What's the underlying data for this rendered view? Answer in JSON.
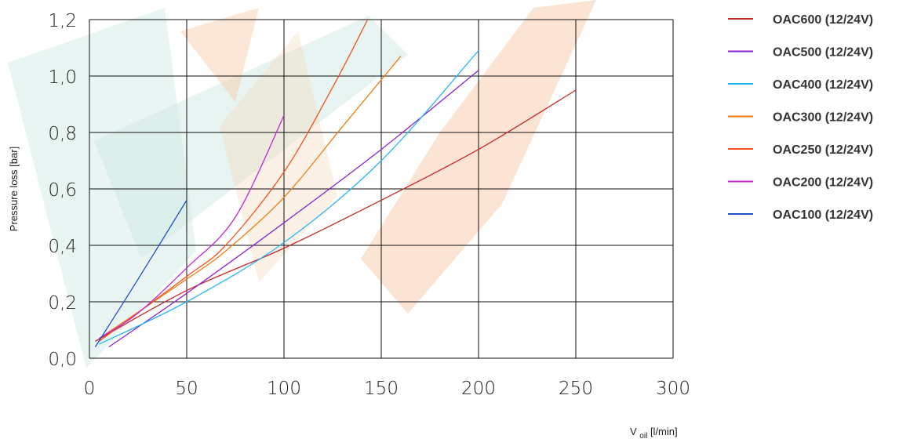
{
  "chart_data": {
    "type": "line",
    "title": "",
    "ylabel": "Pressure loss [bar]",
    "xlabel_main": "V",
    "xlabel_sub": "oil",
    "xlabel_unit": "[l/min]",
    "xlim": [
      0,
      300
    ],
    "ylim": [
      0,
      1.2
    ],
    "x_ticks": [
      0,
      50,
      100,
      150,
      200,
      250,
      300
    ],
    "x_tick_labels": [
      "0",
      "50",
      "100",
      "150",
      "200",
      "250",
      "300"
    ],
    "y_ticks": [
      0,
      0.2,
      0.4,
      0.6,
      0.8,
      1.0,
      1.2
    ],
    "y_tick_labels": [
      "0,0",
      "0,2",
      "0,4",
      "0,6",
      "0,8",
      "1,0",
      "1,2"
    ],
    "grid": true,
    "legend_position": "right",
    "series": [
      {
        "name": "OAC600 (12/24V)",
        "color": "#c62828",
        "x": [
          3,
          50,
          100,
          150,
          200,
          250
        ],
        "y": [
          0.06,
          0.24,
          0.39,
          0.56,
          0.74,
          0.95
        ]
      },
      {
        "name": "OAC500 (12/24V)",
        "color": "#8e24d0",
        "x": [
          10,
          50,
          100,
          150,
          200
        ],
        "y": [
          0.04,
          0.23,
          0.48,
          0.74,
          1.02
        ]
      },
      {
        "name": "OAC400 (12/24V)",
        "color": "#29b6f6",
        "x": [
          5,
          50,
          100,
          150,
          200
        ],
        "y": [
          0.05,
          0.2,
          0.41,
          0.7,
          1.09
        ]
      },
      {
        "name": "OAC300 (12/24V)",
        "color": "#ef7d10",
        "x": [
          5,
          50,
          70,
          100,
          130,
          160
        ],
        "y": [
          0.07,
          0.28,
          0.38,
          0.57,
          0.82,
          1.07
        ]
      },
      {
        "name": "OAC250 (12/24V)",
        "color": "#f4511e",
        "x": [
          5,
          50,
          70,
          100,
          125,
          143
        ],
        "y": [
          0.06,
          0.29,
          0.4,
          0.66,
          0.96,
          1.2
        ]
      },
      {
        "name": "OAC200 (12/24V)",
        "color": "#c026d3",
        "x": [
          5,
          25,
          50,
          75,
          100
        ],
        "y": [
          0.07,
          0.16,
          0.32,
          0.5,
          0.86
        ]
      },
      {
        "name": "OAC100 (12/24V)",
        "color": "#1e4fc9",
        "x": [
          3,
          25,
          50
        ],
        "y": [
          0.04,
          0.28,
          0.56
        ]
      }
    ]
  }
}
